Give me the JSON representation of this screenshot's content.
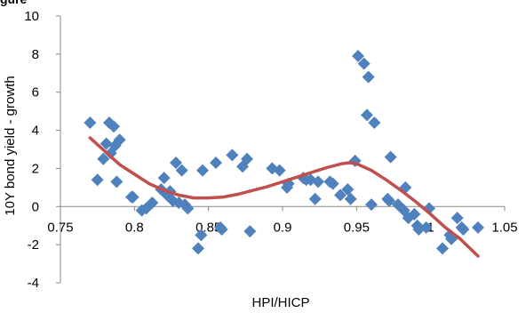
{
  "header": {
    "clipped_label": "gure"
  },
  "chart_data": {
    "type": "scatter",
    "title": "",
    "xlabel": "HPI/HICP",
    "ylabel": "10Y bond yield - growth",
    "xlim": [
      0.75,
      1.05
    ],
    "ylim": [
      -4,
      10
    ],
    "xticks": [
      "0.75",
      "0.8",
      "0.85",
      "0.9",
      "0.95",
      "1",
      "1.05"
    ],
    "yticks": [
      "-4",
      "-2",
      "0",
      "2",
      "4",
      "6",
      "8",
      "10"
    ],
    "grid": false,
    "legend": "none",
    "colors": {
      "points": "#4f81bd",
      "trend": "#c0504d"
    },
    "series": [
      {
        "kind": "points",
        "x": [
          0.77,
          0.775,
          0.779,
          0.781,
          0.783,
          0.784,
          0.786,
          0.787,
          0.788,
          0.79,
          0.798,
          0.799,
          0.805,
          0.808,
          0.812,
          0.818,
          0.82,
          0.822,
          0.824,
          0.826,
          0.828,
          0.83,
          0.832,
          0.834,
          0.836,
          0.843,
          0.845,
          0.846,
          0.855,
          0.858,
          0.859,
          0.866,
          0.873,
          0.876,
          0.878,
          0.893,
          0.898,
          0.903,
          0.904,
          0.914,
          0.916,
          0.919,
          0.922,
          0.924,
          0.932,
          0.934,
          0.939,
          0.944,
          0.946,
          0.949,
          0.951,
          0.955,
          0.957,
          0.958,
          0.96,
          0.962,
          0.971,
          0.972,
          0.973,
          0.978,
          0.982,
          0.983,
          0.985,
          0.989,
          0.991,
          0.992,
          0.997,
          0.999,
          1.008,
          1.013,
          1.014,
          1.018,
          1.021,
          1.022,
          1.032
        ],
        "y": [
          4.4,
          1.4,
          2.5,
          3.3,
          4.4,
          2.8,
          4.2,
          3.2,
          1.3,
          3.5,
          0.5,
          0.5,
          -0.2,
          -0.1,
          0.2,
          0.9,
          1.5,
          0.6,
          0.8,
          0.3,
          2.3,
          0.2,
          1.9,
          0.1,
          -0.1,
          -2.2,
          -1.5,
          1.9,
          2.3,
          -1.1,
          -1.2,
          2.7,
          2.1,
          2.5,
          -1.3,
          2.0,
          1.9,
          1.0,
          1.2,
          1.5,
          1.4,
          1.4,
          0.4,
          1.3,
          1.3,
          1.2,
          0.6,
          0.9,
          0.4,
          2.4,
          7.9,
          7.5,
          4.8,
          6.8,
          0.1,
          4.4,
          0.4,
          0.3,
          2.6,
          0.1,
          -0.2,
          1.0,
          -0.6,
          -0.4,
          -1.0,
          -1.2,
          -1.1,
          -0.1,
          -2.2,
          -1.5,
          -1.7,
          -0.6,
          -1.1,
          -1.2,
          -1.1
        ]
      },
      {
        "kind": "trend",
        "x": [
          0.77,
          0.78,
          0.79,
          0.8,
          0.81,
          0.82,
          0.83,
          0.84,
          0.85,
          0.86,
          0.87,
          0.88,
          0.89,
          0.9,
          0.91,
          0.92,
          0.93,
          0.94,
          0.945,
          0.95,
          0.96,
          0.97,
          0.98,
          0.99,
          1.0,
          1.01,
          1.02,
          1.032
        ],
        "y": [
          3.6,
          2.9,
          2.2,
          1.7,
          1.2,
          0.85,
          0.6,
          0.45,
          0.45,
          0.5,
          0.65,
          0.85,
          1.05,
          1.3,
          1.55,
          1.8,
          2.05,
          2.25,
          2.3,
          2.25,
          1.9,
          1.4,
          0.85,
          0.25,
          -0.4,
          -1.1,
          -1.7,
          -2.6
        ]
      }
    ]
  }
}
